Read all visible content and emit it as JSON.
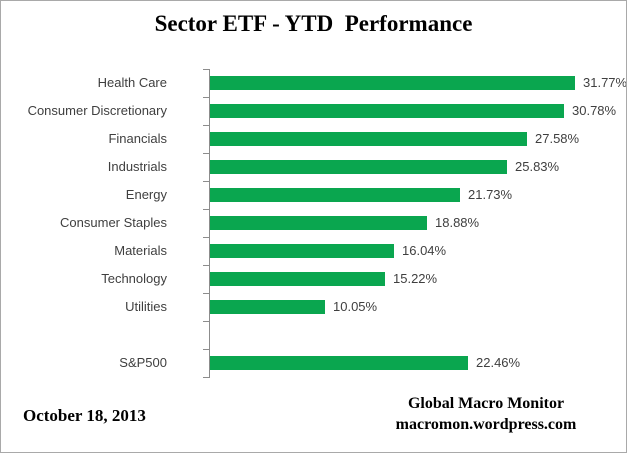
{
  "title": "Sector ETF - YTD  Performance",
  "footer": {
    "date": "October 18, 2013",
    "credit_line1": "Global Macro Monitor",
    "credit_line2": "macromon.wordpress.com"
  },
  "colors": {
    "bar_green": "#0aa64f",
    "axis_gray": "#8c8c8c",
    "label_gray": "#3f3f3f",
    "border_gray": "#a9a9a9"
  },
  "chart_data": {
    "type": "bar",
    "orientation": "horizontal",
    "title": "Sector ETF - YTD  Performance",
    "xlabel": "",
    "ylabel": "",
    "xlim": [
      0,
      35
    ],
    "grid": false,
    "legend": false,
    "categories": [
      "Health Care",
      "Consumer Discretionary",
      "Financials",
      "Industrials",
      "Energy",
      "Consumer Staples",
      "Materials",
      "Technology",
      "Utilities",
      "S&P500"
    ],
    "values": [
      31.77,
      30.78,
      27.58,
      25.83,
      21.73,
      18.88,
      16.04,
      15.22,
      10.05,
      22.46
    ],
    "rows": [
      {
        "label": "Health Care",
        "value": 31.77,
        "value_label": "31.77%"
      },
      {
        "label": "Consumer Discretionary",
        "value": 30.78,
        "value_label": "30.78%"
      },
      {
        "label": "Financials",
        "value": 27.58,
        "value_label": "27.58%"
      },
      {
        "label": "Industrials",
        "value": 25.83,
        "value_label": "25.83%"
      },
      {
        "label": "Energy",
        "value": 21.73,
        "value_label": "21.73%"
      },
      {
        "label": "Consumer Staples",
        "value": 18.88,
        "value_label": "18.88%"
      },
      {
        "label": "Materials",
        "value": 16.04,
        "value_label": "16.04%"
      },
      {
        "label": "Technology",
        "value": 15.22,
        "value_label": "15.22%"
      },
      {
        "label": "Utilities",
        "value": 10.05,
        "value_label": "10.05%"
      },
      {
        "label": "",
        "value": null,
        "value_label": ""
      },
      {
        "label": "S&P500",
        "value": 22.46,
        "value_label": "22.46%"
      }
    ]
  }
}
